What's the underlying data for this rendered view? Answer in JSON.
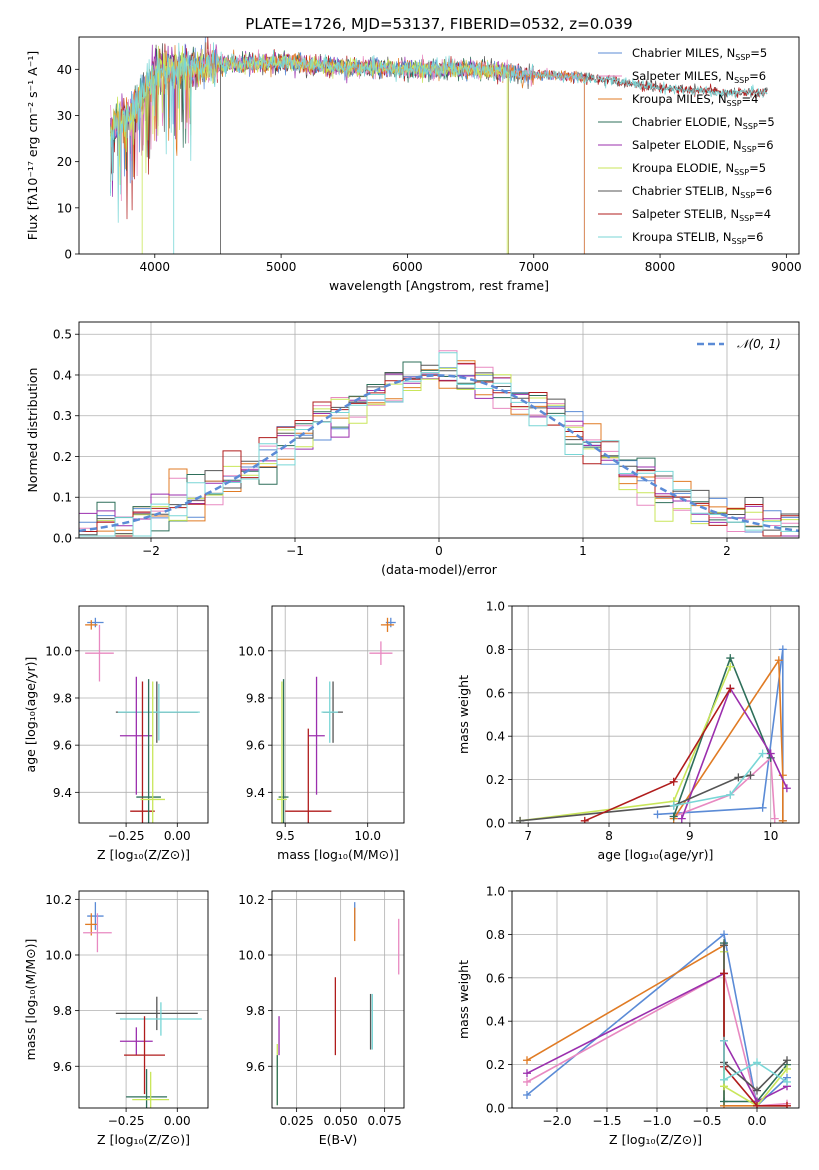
{
  "title": "PLATE=1726, MJD=53137, FIBERID=0532, z=0.039",
  "colors": {
    "chabrier_miles": "#5b8bd6",
    "salpeter_miles": "#e889c1",
    "kroupa_miles": "#e07b24",
    "chabrier_elodie": "#2e6f5a",
    "salpeter_elodie": "#9b2fae",
    "kroupa_elodie": "#c9e65a",
    "chabrier_stelib": "#555555",
    "salpeter_stelib": "#b01c1c",
    "kroupa_stelib": "#78d6d6",
    "gaussian": "#5b8bd6",
    "grid": "#b0b0b0"
  },
  "chart_data": [
    {
      "id": "spectrum",
      "type": "line",
      "title": "PLATE=1726, MJD=53137, FIBERID=0532, z=0.039",
      "xlabel": "wavelength [Angstrom, rest frame]",
      "ylabel": "Flux [fλ10⁻¹⁷ erg cm⁻² s⁻¹ A⁻¹]",
      "xlim": [
        3400,
        9100
      ],
      "ylim": [
        0,
        47
      ],
      "xticks": [
        "4000",
        "5000",
        "6000",
        "7000",
        "8000",
        "9000"
      ],
      "yticks": [
        "0",
        "10",
        "20",
        "30",
        "40"
      ],
      "grid": false,
      "legend_placement": "top-right",
      "legend": [
        {
          "key": "chabrier_miles",
          "base": "Chabrier MILES, N",
          "sub": "SSP",
          "suffix": "=5"
        },
        {
          "key": "salpeter_miles",
          "base": "Salpeter MILES, N",
          "sub": "SSP",
          "suffix": "=6"
        },
        {
          "key": "kroupa_miles",
          "base": "Kroupa MILES, N",
          "sub": "SSP",
          "suffix": "=4"
        },
        {
          "key": "chabrier_elodie",
          "base": "Chabrier ELODIE, N",
          "sub": "SSP",
          "suffix": "=5"
        },
        {
          "key": "salpeter_elodie",
          "base": "Salpeter ELODIE, N",
          "sub": "SSP",
          "suffix": "=6"
        },
        {
          "key": "kroupa_elodie",
          "base": "Kroupa ELODIE, N",
          "sub": "SSP",
          "suffix": "=5"
        },
        {
          "key": "chabrier_stelib",
          "base": "Chabrier STELIB, N",
          "sub": "SSP",
          "suffix": "=6"
        },
        {
          "key": "salpeter_stelib",
          "base": "Salpeter STELIB, N",
          "sub": "SSP",
          "suffix": "=4"
        },
        {
          "key": "kroupa_stelib",
          "base": "Kroupa STELIB, N",
          "sub": "SSP",
          "suffix": "=6"
        }
      ],
      "continuum": [
        [
          3650,
          27
        ],
        [
          3700,
          28
        ],
        [
          3800,
          30
        ],
        [
          3900,
          34
        ],
        [
          4000,
          40
        ],
        [
          4100,
          40
        ],
        [
          4300,
          40
        ],
        [
          4500,
          41
        ],
        [
          5000,
          41.5
        ],
        [
          5500,
          40.5
        ],
        [
          6000,
          40
        ],
        [
          6500,
          40
        ],
        [
          7000,
          39
        ],
        [
          7500,
          38
        ],
        [
          8000,
          36
        ],
        [
          8500,
          35
        ],
        [
          8850,
          35
        ]
      ],
      "series_ranges": [
        {
          "key": "chabrier_miles",
          "x": [
            3650,
            7400
          ]
        },
        {
          "key": "salpeter_miles",
          "x": [
            3650,
            7400
          ]
        },
        {
          "key": "kroupa_miles",
          "x": [
            3650,
            7400
          ]
        },
        {
          "key": "chabrier_elodie",
          "x": [
            3650,
            6800
          ]
        },
        {
          "key": "salpeter_elodie",
          "x": [
            3650,
            6800
          ]
        },
        {
          "key": "kroupa_elodie",
          "x": [
            3650,
            6800
          ]
        },
        {
          "key": "chabrier_stelib",
          "x": [
            3650,
            8850
          ]
        },
        {
          "key": "salpeter_stelib",
          "x": [
            3650,
            8850
          ]
        },
        {
          "key": "kroupa_stelib",
          "x": [
            3650,
            8850
          ]
        }
      ]
    },
    {
      "id": "residuals",
      "type": "line",
      "xlabel": "(data-model)/error",
      "ylabel": "Normed distribution",
      "xlim": [
        -2.5,
        2.5
      ],
      "ylim": [
        0,
        0.53
      ],
      "xticks": [
        "−2",
        "−1",
        "0",
        "1",
        "2"
      ],
      "yticks": [
        "0.0",
        "0.1",
        "0.2",
        "0.3",
        "0.4",
        "0.5"
      ],
      "grid": true,
      "legend_placement": "top-right",
      "legend": [
        "𝒩(0, 1)"
      ],
      "bins": 40
    },
    {
      "id": "age_vs_Z",
      "type": "scatter",
      "xlabel": "Z [log₁₀(Z/Z⊙)]",
      "ylabel": "age  [log₁₀(age/yr)]",
      "xlim": [
        -0.48,
        0.15
      ],
      "ylim": [
        9.27,
        10.19
      ],
      "xticks": [
        "−0.25",
        "0.00"
      ],
      "xtick_values": [
        -0.25,
        0.0
      ],
      "yticks": [
        "9.4",
        "9.6",
        "9.8",
        "10.0"
      ],
      "ytick_values": [
        9.4,
        9.6,
        9.8,
        10.0
      ],
      "points": [
        {
          "key": "chabrier_miles",
          "x": -0.4,
          "y": 10.12,
          "xerr": 0.04,
          "yerr": 0.02
        },
        {
          "key": "kroupa_miles",
          "x": -0.42,
          "y": 10.11,
          "xerr": 0.03,
          "yerr": 0.02
        },
        {
          "key": "salpeter_miles",
          "x": -0.38,
          "y": 9.99,
          "xerr": 0.07,
          "yerr": 0.12
        },
        {
          "key": "chabrier_stelib",
          "x": -0.1,
          "y": 9.74,
          "xerr": 0.2,
          "yerr": 0.13
        },
        {
          "key": "kroupa_stelib",
          "x": -0.09,
          "y": 9.74,
          "xerr": 0.2,
          "yerr": 0.12
        },
        {
          "key": "salpeter_elodie",
          "x": -0.2,
          "y": 9.64,
          "xerr": 0.08,
          "yerr": 0.25
        },
        {
          "key": "salpeter_stelib",
          "x": -0.17,
          "y": 9.32,
          "xerr": 0.06,
          "yerr": 0.55
        },
        {
          "key": "chabrier_elodie",
          "x": -0.14,
          "y": 9.38,
          "xerr": 0.06,
          "yerr": 0.5
        },
        {
          "key": "kroupa_elodie",
          "x": -0.12,
          "y": 9.37,
          "xerr": 0.06,
          "yerr": 0.5
        }
      ]
    },
    {
      "id": "age_vs_mass",
      "type": "scatter",
      "xlabel": "mass [log₁₀(M/M⊙)]",
      "ylabel": "",
      "xlim": [
        9.42,
        10.22
      ],
      "ylim": [
        9.27,
        10.19
      ],
      "xticks": [
        "9.5",
        "10.0"
      ],
      "xtick_values": [
        9.5,
        10.0
      ],
      "yticks": [
        "9.4",
        "9.6",
        "9.8",
        "10.0"
      ],
      "ytick_values": [
        9.4,
        9.6,
        9.8,
        10.0
      ],
      "points": [
        {
          "key": "chabrier_miles",
          "x": 10.14,
          "y": 10.12,
          "xerr": 0.03,
          "yerr": 0.02
        },
        {
          "key": "kroupa_miles",
          "x": 10.12,
          "y": 10.11,
          "xerr": 0.04,
          "yerr": 0.03
        },
        {
          "key": "salpeter_miles",
          "x": 10.08,
          "y": 9.99,
          "xerr": 0.07,
          "yerr": 0.05
        },
        {
          "key": "chabrier_stelib",
          "x": 9.79,
          "y": 9.74,
          "xerr": 0.06,
          "yerr": 0.13
        },
        {
          "key": "kroupa_stelib",
          "x": 9.77,
          "y": 9.74,
          "xerr": 0.05,
          "yerr": 0.13
        },
        {
          "key": "salpeter_elodie",
          "x": 9.69,
          "y": 9.64,
          "xerr": 0.05,
          "yerr": 0.25
        },
        {
          "key": "salpeter_stelib",
          "x": 9.64,
          "y": 9.32,
          "xerr": 0.14,
          "yerr": 0.35
        },
        {
          "key": "chabrier_elodie",
          "x": 9.49,
          "y": 9.38,
          "xerr": 0.03,
          "yerr": 0.5
        },
        {
          "key": "kroupa_elodie",
          "x": 9.48,
          "y": 9.37,
          "xerr": 0.03,
          "yerr": 0.5
        }
      ]
    },
    {
      "id": "massweight_vs_age",
      "type": "line",
      "xlabel": "age  [log₁₀(age/yr)]",
      "ylabel": "mass weight",
      "xlim": [
        6.8,
        10.35
      ],
      "ylim": [
        0,
        1.0
      ],
      "xticks": [
        "7",
        "8",
        "9",
        "10"
      ],
      "xtick_values": [
        7,
        8,
        9,
        10
      ],
      "yticks": [
        "0.0",
        "0.2",
        "0.4",
        "0.6",
        "0.8",
        "1.0"
      ],
      "ytick_values": [
        0,
        0.2,
        0.4,
        0.6,
        0.8,
        1.0
      ],
      "grid": true,
      "series": [
        {
          "key": "chabrier_miles",
          "x": [
            8.6,
            9.9,
            10.15,
            10.15
          ],
          "y": [
            0.04,
            0.07,
            0.8,
            0.01
          ]
        },
        {
          "key": "salpeter_miles",
          "x": [
            8.8,
            9.5,
            10.0,
            10.05
          ],
          "y": [
            0.03,
            0.13,
            0.3,
            0.02
          ]
        },
        {
          "key": "kroupa_miles",
          "x": [
            8.8,
            10.1,
            10.15,
            10.15
          ],
          "y": [
            0.02,
            0.75,
            0.22,
            0.01
          ]
        },
        {
          "key": "chabrier_elodie",
          "x": [
            8.8,
            9.5,
            10.0
          ],
          "y": [
            0.03,
            0.76,
            0.3
          ]
        },
        {
          "key": "salpeter_elodie",
          "x": [
            8.9,
            9.5,
            10.0,
            10.2
          ],
          "y": [
            0.02,
            0.62,
            0.32,
            0.16
          ]
        },
        {
          "key": "kroupa_elodie",
          "x": [
            6.9,
            8.8,
            9.5
          ],
          "y": [
            0.01,
            0.1,
            0.72
          ]
        },
        {
          "key": "chabrier_stelib",
          "x": [
            6.9,
            8.8,
            9.6,
            9.75
          ],
          "y": [
            0.01,
            0.08,
            0.21,
            0.22
          ]
        },
        {
          "key": "salpeter_stelib",
          "x": [
            7.7,
            8.8,
            9.5
          ],
          "y": [
            0.01,
            0.19,
            0.62
          ]
        },
        {
          "key": "kroupa_stelib",
          "x": [
            8.8,
            9.5,
            9.9
          ],
          "y": [
            0.08,
            0.13,
            0.32
          ]
        }
      ]
    },
    {
      "id": "mass_vs_Z",
      "type": "scatter",
      "xlabel": "Z [log₁₀(Z/Z⊙)]",
      "ylabel": "mass [log₁₀(M/M⊙)]",
      "xlim": [
        -0.48,
        0.15
      ],
      "ylim": [
        9.45,
        10.23
      ],
      "xticks": [
        "−0.25",
        "0.00"
      ],
      "xtick_values": [
        -0.25,
        0.0
      ],
      "yticks": [
        "9.6",
        "9.8",
        "10.0",
        "10.2"
      ],
      "ytick_values": [
        9.6,
        9.8,
        10.0,
        10.2
      ],
      "points": [
        {
          "key": "chabrier_miles",
          "x": -0.4,
          "y": 10.14,
          "xerr": 0.04,
          "yerr": 0.05
        },
        {
          "key": "kroupa_miles",
          "x": -0.42,
          "y": 10.11,
          "xerr": 0.03,
          "yerr": 0.04
        },
        {
          "key": "salpeter_miles",
          "x": -0.39,
          "y": 10.08,
          "xerr": 0.07,
          "yerr": 0.07
        },
        {
          "key": "chabrier_stelib",
          "x": -0.1,
          "y": 9.79,
          "xerr": 0.2,
          "yerr": 0.06
        },
        {
          "key": "kroupa_stelib",
          "x": -0.08,
          "y": 9.77,
          "xerr": 0.2,
          "yerr": 0.06
        },
        {
          "key": "salpeter_elodie",
          "x": -0.2,
          "y": 9.69,
          "xerr": 0.08,
          "yerr": 0.05
        },
        {
          "key": "salpeter_stelib",
          "x": -0.16,
          "y": 9.64,
          "xerr": 0.1,
          "yerr": 0.14
        },
        {
          "key": "chabrier_elodie",
          "x": -0.15,
          "y": 9.49,
          "xerr": 0.1,
          "yerr": 0.1
        },
        {
          "key": "kroupa_elodie",
          "x": -0.13,
          "y": 9.48,
          "xerr": 0.09,
          "yerr": 0.1
        }
      ]
    },
    {
      "id": "mass_vs_ebv",
      "type": "scatter",
      "xlabel": "E(B-V)",
      "ylabel": "",
      "xlim": [
        0.011,
        0.086
      ],
      "ylim": [
        9.45,
        10.23
      ],
      "xticks": [
        "0.025",
        "0.050",
        "0.075"
      ],
      "xtick_values": [
        0.025,
        0.05,
        0.075
      ],
      "yticks": [
        "9.6",
        "9.8",
        "10.0",
        "10.2"
      ],
      "ytick_values": [
        9.6,
        9.8,
        10.0,
        10.2
      ],
      "points": [
        {
          "key": "chabrier_miles",
          "x": 0.058,
          "y": 10.14,
          "xerr": 0,
          "yerr": 0.05
        },
        {
          "key": "kroupa_miles",
          "x": 0.058,
          "y": 10.11,
          "xerr": 0,
          "yerr": 0.06
        },
        {
          "key": "salpeter_miles",
          "x": 0.083,
          "y": 10.03,
          "xerr": 0,
          "yerr": 0.1
        },
        {
          "key": "chabrier_stelib",
          "x": 0.067,
          "y": 9.76,
          "xerr": 0,
          "yerr": 0.1
        },
        {
          "key": "kroupa_stelib",
          "x": 0.068,
          "y": 9.76,
          "xerr": 0,
          "yerr": 0.1
        },
        {
          "key": "salpeter_stelib",
          "x": 0.047,
          "y": 9.78,
          "xerr": 0,
          "yerr": 0.14
        },
        {
          "key": "salpeter_elodie",
          "x": 0.015,
          "y": 9.71,
          "xerr": 0,
          "yerr": 0.07
        },
        {
          "key": "kroupa_elodie",
          "x": 0.014,
          "y": 9.57,
          "xerr": 0,
          "yerr": 0.11
        },
        {
          "key": "chabrier_elodie",
          "x": 0.014,
          "y": 9.55,
          "xerr": 0,
          "yerr": 0.09
        }
      ]
    },
    {
      "id": "massweight_vs_Z",
      "type": "line",
      "xlabel": "Z [log₁₀(Z/Z⊙)]",
      "ylabel": "mass weight",
      "xlim": [
        -2.45,
        0.42
      ],
      "ylim": [
        0,
        1.0
      ],
      "xticks": [
        "−2.0",
        "−1.5",
        "−1.0",
        "−0.5",
        "0.0"
      ],
      "xtick_values": [
        -2.0,
        -1.5,
        -1.0,
        -0.5,
        0.0
      ],
      "yticks": [
        "0.0",
        "0.2",
        "0.4",
        "0.6",
        "0.8",
        "1.0"
      ],
      "ytick_values": [
        0,
        0.2,
        0.4,
        0.6,
        0.8,
        1.0
      ],
      "grid": true,
      "series": [
        {
          "key": "chabrier_miles",
          "x": [
            -2.3,
            -0.33,
            0.0,
            0.3
          ],
          "y": [
            0.06,
            0.8,
            0.01,
            0.14
          ]
        },
        {
          "key": "salpeter_miles",
          "x": [
            -2.3,
            -0.33,
            0.0,
            0.3
          ],
          "y": [
            0.12,
            0.62,
            0.01,
            0.02
          ]
        },
        {
          "key": "kroupa_miles",
          "x": [
            -2.3,
            -0.33,
            -0.33,
            0.3
          ],
          "y": [
            0.22,
            0.75,
            0.01,
            0.01
          ]
        },
        {
          "key": "chabrier_elodie",
          "x": [
            -0.33,
            -0.33,
            0.0,
            0.3
          ],
          "y": [
            0.76,
            0.03,
            0.03,
            0.2
          ]
        },
        {
          "key": "salpeter_elodie",
          "x": [
            -2.3,
            -0.33,
            -0.33,
            0.0,
            0.3
          ],
          "y": [
            0.16,
            0.62,
            0.31,
            0.03,
            0.1
          ]
        },
        {
          "key": "kroupa_elodie",
          "x": [
            -0.33,
            -0.33,
            0.0,
            0.3
          ],
          "y": [
            0.72,
            0.1,
            0.01,
            0.18
          ]
        },
        {
          "key": "chabrier_stelib",
          "x": [
            -0.33,
            -0.33,
            0.0,
            0.3
          ],
          "y": [
            0.75,
            0.21,
            0.08,
            0.22
          ]
        },
        {
          "key": "salpeter_stelib",
          "x": [
            -0.33,
            -0.33,
            0.0,
            0.3
          ],
          "y": [
            0.62,
            0.19,
            0.01,
            0.01
          ]
        },
        {
          "key": "kroupa_stelib",
          "x": [
            -0.33,
            -0.33,
            0.0,
            0.3
          ],
          "y": [
            0.31,
            0.13,
            0.21,
            0.12
          ]
        }
      ]
    }
  ]
}
